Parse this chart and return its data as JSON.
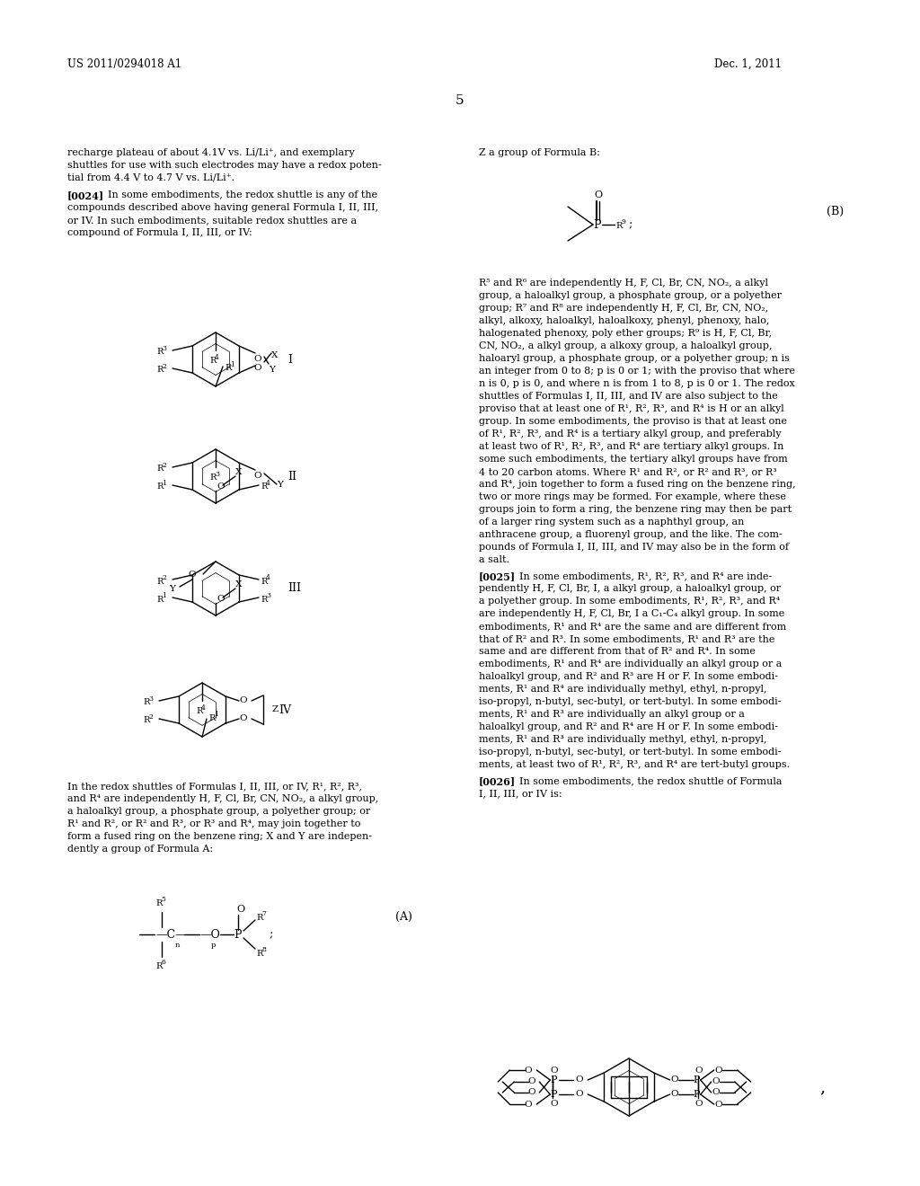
{
  "background_color": "#ffffff",
  "header_left": "US 2011/0294018 A1",
  "header_right": "Dec. 1, 2011",
  "page_number": "5",
  "figsize": [
    10.24,
    13.2
  ],
  "dpi": 100
}
